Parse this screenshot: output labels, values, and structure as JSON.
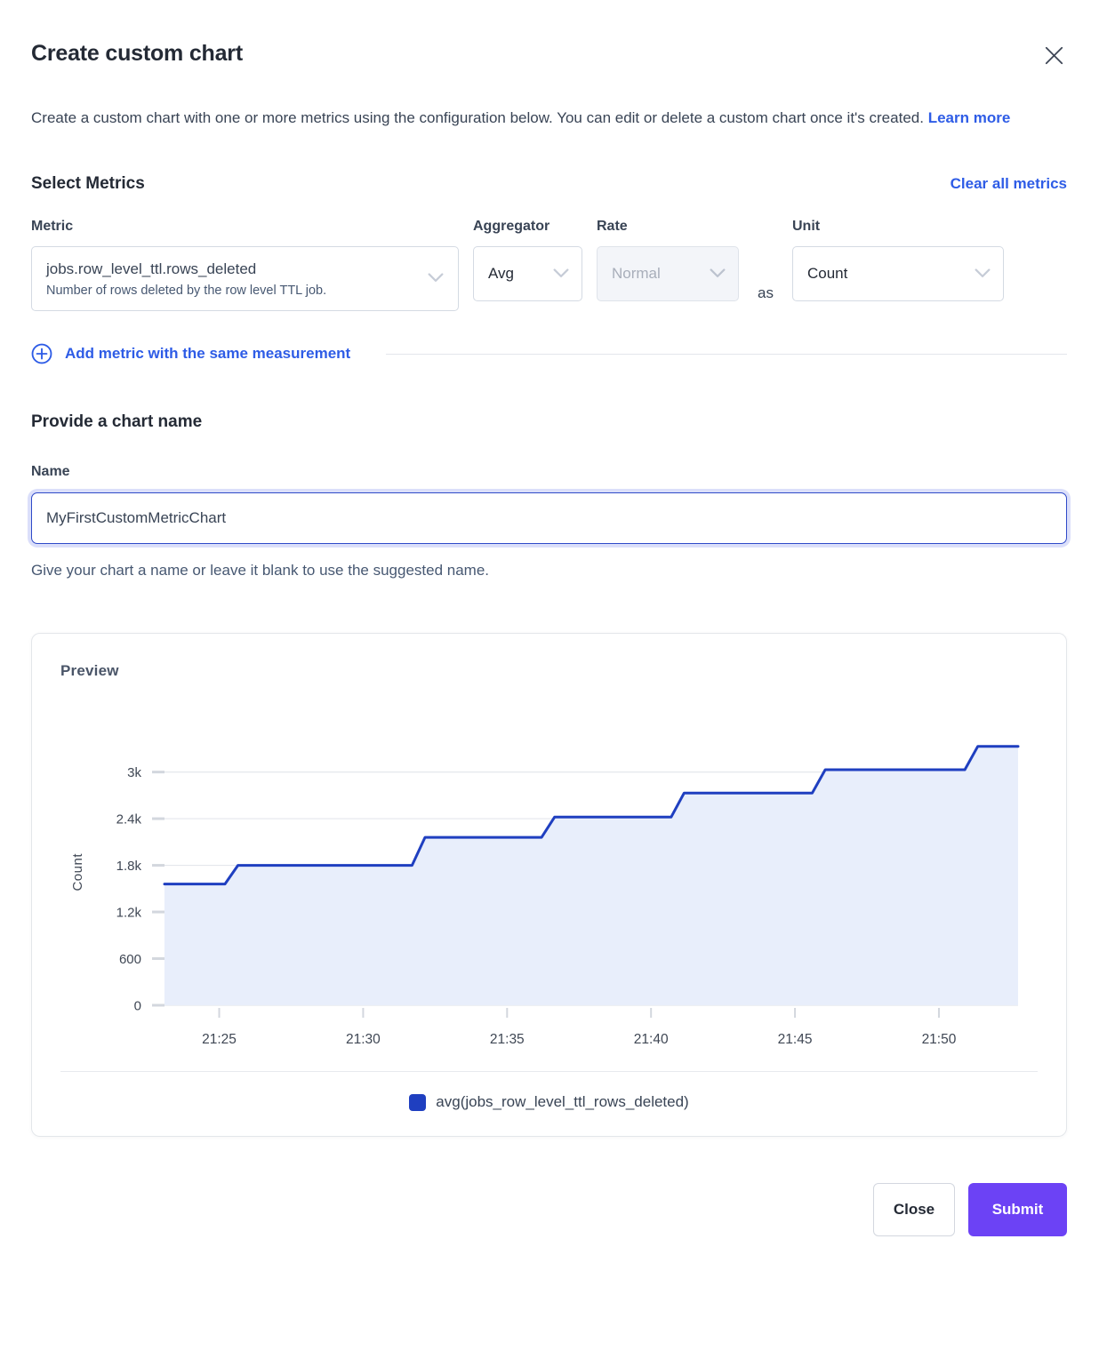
{
  "dialog": {
    "title": "Create custom chart",
    "description": "Create a custom chart with one or more metrics using the configuration below. You can edit or delete a custom chart once it's created.",
    "learn_more_label": "Learn more"
  },
  "metrics_section": {
    "heading": "Select Metrics",
    "clear_all_label": "Clear all metrics",
    "metric_label": "Metric",
    "metric_value": "jobs.row_level_ttl.rows_deleted",
    "metric_description": "Number of rows deleted by the row level TTL job.",
    "aggregator_label": "Aggregator",
    "aggregator_value": "Avg",
    "rate_label": "Rate",
    "rate_value": "Normal",
    "as_label": "as",
    "unit_label": "Unit",
    "unit_value": "Count",
    "add_metric_label": "Add metric with the same measurement"
  },
  "name_section": {
    "heading": "Provide a chart name",
    "label": "Name",
    "value": "MyFirstCustomMetricChart",
    "helper": "Give your chart a name or leave it blank to use the suggested name."
  },
  "preview": {
    "heading": "Preview",
    "legend": "avg(jobs_row_level_ttl_rows_deleted)"
  },
  "footer": {
    "close_label": "Close",
    "submit_label": "Submit"
  },
  "colors": {
    "link_blue": "#2e5ce6",
    "submit_purple": "#6c42f5",
    "heading_dark": "#242a35",
    "body_text": "#394455",
    "input_focus_border": "#2f4ac8"
  },
  "chart_data": {
    "type": "area",
    "subtype": "step-line",
    "title": "",
    "xlabel": "",
    "ylabel": "Count",
    "ylim": [
      0,
      3430
    ],
    "xlim": [
      23.1,
      52.75
    ],
    "grid": true,
    "grid_color": "#e4e7ec",
    "tick_color": "#d3d7de",
    "axis_text_color": "#3f4754",
    "y_ticks": [
      {
        "value": 0,
        "label": "0"
      },
      {
        "value": 600,
        "label": "600"
      },
      {
        "value": 1200,
        "label": "1.2k"
      },
      {
        "value": 1800,
        "label": "1.8k"
      },
      {
        "value": 2400,
        "label": "2.4k"
      },
      {
        "value": 3000,
        "label": "3k"
      }
    ],
    "x_ticks": [
      {
        "minute": 25,
        "label": "21:25"
      },
      {
        "minute": 30,
        "label": "21:30"
      },
      {
        "minute": 35,
        "label": "21:35"
      },
      {
        "minute": 40,
        "label": "21:40"
      },
      {
        "minute": 45,
        "label": "21:45"
      },
      {
        "minute": 50,
        "label": "21:50"
      }
    ],
    "legend_position": "bottom-center",
    "series": [
      {
        "name": "avg(jobs_row_level_ttl_rows_deleted)",
        "line_color": "#1f3fc0",
        "fill_color": "#e8eefb",
        "points": [
          {
            "time": "21:23",
            "minute": 23.1,
            "value": 1560
          },
          {
            "time": "21:25",
            "minute": 25.2,
            "value": 1800
          },
          {
            "time": "21:32",
            "minute": 31.7,
            "value": 2160
          },
          {
            "time": "21:36",
            "minute": 36.2,
            "value": 2420
          },
          {
            "time": "21:41",
            "minute": 40.7,
            "value": 2730
          },
          {
            "time": "21:46",
            "minute": 45.6,
            "value": 3030
          },
          {
            "time": "21:51",
            "minute": 50.9,
            "value": 3330
          }
        ],
        "end_time": "21:53"
      }
    ]
  }
}
